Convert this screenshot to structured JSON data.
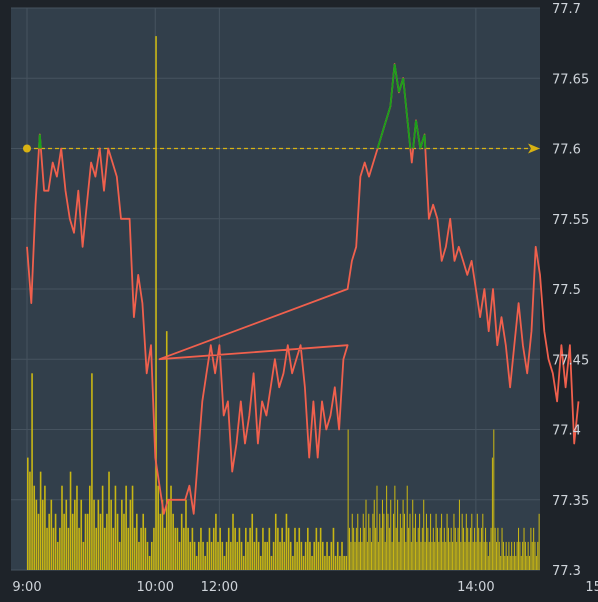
{
  "chart_data": {
    "type": "line",
    "title": "",
    "xlabel": "",
    "ylabel": "",
    "x_ticks": [
      "9:00",
      "10:00",
      "12:00",
      "14:00",
      "15:00"
    ],
    "y_ticks": [
      "77.3",
      "77.35",
      "77.4",
      "77.45",
      "77.5",
      "77.55",
      "77.6",
      "77.65",
      "77.7"
    ],
    "ylim": [
      77.3,
      77.7
    ],
    "reference_line": {
      "value": 77.6,
      "label": "77.6",
      "style": "dashed"
    },
    "grid": true,
    "colors": {
      "background": "#323f4b",
      "frame": "#1e2329",
      "grid": "#46535f",
      "price_line": "#f0604d",
      "price_above_ref": "#1aa11a",
      "volume": "#c8b614",
      "reference": "#d8b213",
      "tick_text": "#cfd4da"
    },
    "series": [
      {
        "type": "line",
        "points": [
          [
            "9:00",
            77.53
          ],
          [
            "9:02",
            77.49
          ],
          [
            "9:04",
            77.56
          ],
          [
            "9:06",
            77.61
          ],
          [
            "9:08",
            77.57
          ],
          [
            "9:10",
            77.57
          ],
          [
            "9:12",
            77.59
          ],
          [
            "9:14",
            77.58
          ],
          [
            "9:16",
            77.6
          ],
          [
            "9:18",
            77.57
          ],
          [
            "9:20",
            77.55
          ],
          [
            "9:22",
            77.54
          ],
          [
            "9:24",
            77.57
          ],
          [
            "9:26",
            77.53
          ],
          [
            "9:28",
            77.56
          ],
          [
            "9:30",
            77.59
          ],
          [
            "9:32",
            77.58
          ],
          [
            "9:34",
            77.6
          ],
          [
            "9:36",
            77.57
          ],
          [
            "9:38",
            77.6
          ],
          [
            "9:40",
            77.59
          ],
          [
            "9:42",
            77.58
          ],
          [
            "9:44",
            77.55
          ],
          [
            "9:46",
            77.55
          ],
          [
            "9:48",
            77.55
          ],
          [
            "9:50",
            77.48
          ],
          [
            "9:52",
            77.51
          ],
          [
            "9:54",
            77.49
          ],
          [
            "9:56",
            77.44
          ],
          [
            "9:58",
            77.46
          ],
          [
            "10:00",
            77.38
          ],
          [
            "10:02",
            77.36
          ],
          [
            "10:04",
            77.34
          ],
          [
            "10:06",
            77.35
          ],
          [
            "10:08",
            77.35
          ],
          [
            "10:10",
            77.35
          ],
          [
            "10:12",
            77.35
          ],
          [
            "10:14",
            77.35
          ],
          [
            "10:16",
            77.36
          ],
          [
            "10:18",
            77.34
          ],
          [
            "10:20",
            77.38
          ],
          [
            "10:22",
            77.42
          ],
          [
            "10:24",
            77.44
          ],
          [
            "10:26",
            77.46
          ],
          [
            "10:28",
            77.44
          ],
          [
            "10:30",
            77.46
          ],
          [
            "10:32",
            77.41
          ],
          [
            "10:34",
            77.42
          ],
          [
            "10:36",
            77.37
          ],
          [
            "10:38",
            77.39
          ],
          [
            "10:40",
            77.42
          ],
          [
            "10:42",
            77.39
          ],
          [
            "10:44",
            77.41
          ],
          [
            "10:46",
            77.44
          ],
          [
            "10:48",
            77.39
          ],
          [
            "10:50",
            77.42
          ],
          [
            "10:52",
            77.41
          ],
          [
            "10:54",
            77.43
          ],
          [
            "10:56",
            77.45
          ],
          [
            "10:58",
            77.43
          ],
          [
            "11:00",
            77.44
          ],
          [
            "11:02",
            77.46
          ],
          [
            "11:04",
            77.44
          ],
          [
            "11:06",
            77.45
          ],
          [
            "11:08",
            77.46
          ],
          [
            "11:10",
            77.43
          ],
          [
            "11:12",
            77.38
          ],
          [
            "11:14",
            77.42
          ],
          [
            "11:16",
            77.38
          ],
          [
            "11:18",
            77.42
          ],
          [
            "11:20",
            77.4
          ],
          [
            "11:22",
            77.41
          ],
          [
            "11:24",
            77.43
          ],
          [
            "11:26",
            77.4
          ],
          [
            "11:28",
            77.45
          ],
          [
            "11:30",
            77.46
          ],
          [
            "11:32",
            77.45
          ],
          [
            "13:00",
            77.5
          ],
          [
            "13:02",
            77.52
          ],
          [
            "13:04",
            77.53
          ],
          [
            "13:06",
            77.58
          ],
          [
            "13:08",
            77.59
          ],
          [
            "13:10",
            77.58
          ],
          [
            "13:12",
            77.59
          ],
          [
            "13:14",
            77.6
          ],
          [
            "13:16",
            77.61
          ],
          [
            "13:18",
            77.62
          ],
          [
            "13:20",
            77.63
          ],
          [
            "13:22",
            77.66
          ],
          [
            "13:24",
            77.64
          ],
          [
            "13:26",
            77.65
          ],
          [
            "13:28",
            77.62
          ],
          [
            "13:30",
            77.59
          ],
          [
            "13:32",
            77.62
          ],
          [
            "13:34",
            77.6
          ],
          [
            "13:36",
            77.61
          ],
          [
            "13:38",
            77.55
          ],
          [
            "13:40",
            77.56
          ],
          [
            "13:42",
            77.55
          ],
          [
            "13:44",
            77.52
          ],
          [
            "13:46",
            77.53
          ],
          [
            "13:48",
            77.55
          ],
          [
            "13:50",
            77.52
          ],
          [
            "13:52",
            77.53
          ],
          [
            "13:54",
            77.52
          ],
          [
            "13:56",
            77.51
          ],
          [
            "13:58",
            77.52
          ],
          [
            "14:00",
            77.5
          ],
          [
            "14:02",
            77.48
          ],
          [
            "14:04",
            77.5
          ],
          [
            "14:06",
            77.47
          ],
          [
            "14:08",
            77.5
          ],
          [
            "14:10",
            77.46
          ],
          [
            "14:12",
            77.48
          ],
          [
            "14:14",
            77.46
          ],
          [
            "14:16",
            77.43
          ],
          [
            "14:18",
            77.46
          ],
          [
            "14:20",
            77.49
          ],
          [
            "14:22",
            77.46
          ],
          [
            "14:24",
            77.44
          ],
          [
            "14:26",
            77.47
          ],
          [
            "14:28",
            77.53
          ],
          [
            "14:30",
            77.51
          ],
          [
            "14:32",
            77.47
          ],
          [
            "14:34",
            77.45
          ],
          [
            "14:36",
            77.44
          ],
          [
            "14:38",
            77.42
          ],
          [
            "14:40",
            77.46
          ],
          [
            "14:42",
            77.43
          ],
          [
            "14:44",
            77.46
          ],
          [
            "14:46",
            77.39
          ],
          [
            "14:48",
            77.42
          ]
        ]
      },
      {
        "type": "bar",
        "scale_max": 77.7,
        "am_values": [
          77.38,
          77.37,
          77.44,
          77.36,
          77.35,
          77.34,
          77.37,
          77.35,
          77.36,
          77.33,
          77.34,
          77.35,
          77.33,
          77.34,
          77.32,
          77.33,
          77.36,
          77.34,
          77.35,
          77.33,
          77.37,
          77.34,
          77.35,
          77.36,
          77.33,
          77.35,
          77.32,
          77.34,
          77.34,
          77.36,
          77.44,
          77.35,
          77.33,
          77.35,
          77.34,
          77.36,
          77.33,
          77.34,
          77.37,
          77.35,
          77.33,
          77.36,
          77.34,
          77.32,
          77.35,
          77.34,
          77.36,
          77.33,
          77.35,
          77.36,
          77.33,
          77.34,
          77.32,
          77.33,
          77.34,
          77.33,
          77.32,
          77.31,
          77.32,
          77.33,
          77.68,
          77.36,
          77.34,
          77.35,
          77.33,
          77.47,
          77.35,
          77.36,
          77.34,
          77.33,
          77.33,
          77.32,
          77.34,
          77.33,
          77.35,
          77.33,
          77.32,
          77.33,
          77.32,
          77.31,
          77.32,
          77.33,
          77.32,
          77.31,
          77.32,
          77.33,
          77.32,
          77.33,
          77.34,
          77.32,
          77.33,
          77.32,
          77.31,
          77.32,
          77.33,
          77.32,
          77.34,
          77.33,
          77.32,
          77.33,
          77.32,
          77.31,
          77.33,
          77.32,
          77.33,
          77.34,
          77.32,
          77.33,
          77.32,
          77.31,
          77.33,
          77.32,
          77.32,
          77.33,
          77.31,
          77.32,
          77.34,
          77.33,
          77.32,
          77.33,
          77.32,
          77.34,
          77.33,
          77.32,
          77.31,
          77.33,
          77.32,
          77.33,
          77.32,
          77.31,
          77.32,
          77.33,
          77.32,
          77.31,
          77.32,
          77.33,
          77.32,
          77.33,
          77.32,
          77.31,
          77.32,
          77.31,
          77.32,
          77.33,
          77.31,
          77.32,
          77.31,
          77.32,
          77.31,
          77.31
        ],
        "pm_values": [
          77.4,
          77.33,
          77.32,
          77.34,
          77.33,
          77.32,
          77.33,
          77.34,
          77.32,
          77.33,
          77.32,
          77.34,
          77.33,
          77.35,
          77.32,
          77.34,
          77.33,
          77.32,
          77.34,
          77.35,
          77.33,
          77.36,
          77.32,
          77.34,
          77.33,
          77.35,
          77.34,
          77.32,
          77.36,
          77.34,
          77.33,
          77.35,
          77.32,
          77.34,
          77.36,
          77.33,
          77.35,
          77.32,
          77.34,
          77.33,
          77.35,
          77.34,
          77.32,
          77.36,
          77.33,
          77.34,
          77.32,
          77.35,
          77.33,
          77.34,
          77.32,
          77.33,
          77.34,
          77.32,
          77.33,
          77.35,
          77.32,
          77.34,
          77.33,
          77.32,
          77.34,
          77.32,
          77.33,
          77.32,
          77.34,
          77.33,
          77.32,
          77.33,
          77.34,
          77.32,
          77.33,
          77.32,
          77.34,
          77.33,
          77.32,
          77.33,
          77.32,
          77.34,
          77.33,
          77.32,
          77.33,
          77.35,
          77.32,
          77.34,
          77.33,
          77.32,
          77.34,
          77.33,
          77.32,
          77.33,
          77.34,
          77.32,
          77.33,
          77.32,
          77.34,
          77.33,
          77.32,
          77.33,
          77.34,
          77.32,
          77.33,
          77.32,
          77.31,
          77.32,
          77.33,
          77.38,
          77.4,
          77.33,
          77.32,
          77.33,
          77.32,
          77.31,
          77.33,
          77.32,
          77.31,
          77.32,
          77.31,
          77.32,
          77.31,
          77.32,
          77.31,
          77.32,
          77.31,
          77.32,
          77.33,
          77.32,
          77.31,
          77.32,
          77.33,
          77.32,
          77.31,
          77.32,
          77.31,
          77.33,
          77.32,
          77.33,
          77.32,
          77.31,
          77.32,
          77.34
        ]
      }
    ]
  }
}
